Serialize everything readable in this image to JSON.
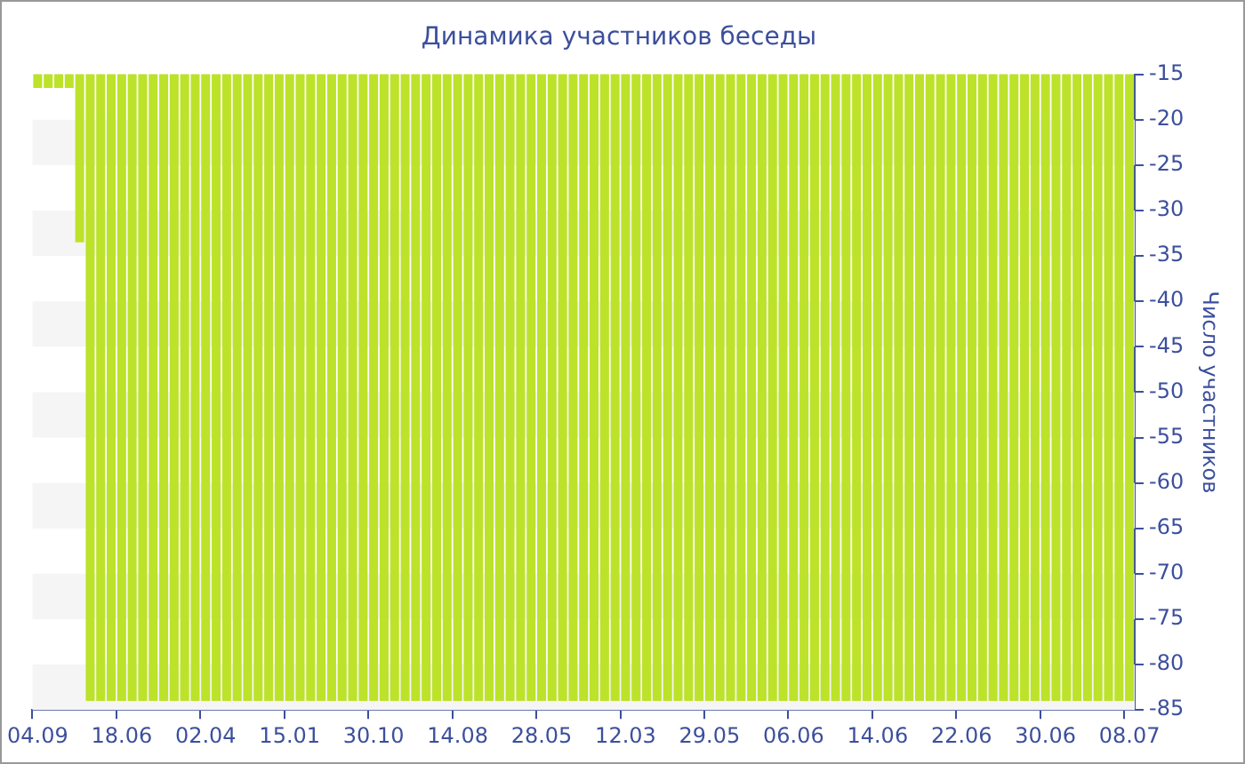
{
  "chart_data": {
    "type": "bar",
    "title": "Динамика участников беседы",
    "ylabel": "Число участников",
    "categories": [
      "04.09",
      null,
      null,
      null,
      null,
      null,
      null,
      null,
      "18.06",
      null,
      null,
      null,
      null,
      null,
      null,
      null,
      "02.04",
      null,
      null,
      null,
      null,
      null,
      null,
      null,
      "15.01",
      null,
      null,
      null,
      null,
      null,
      null,
      null,
      "30.10",
      null,
      null,
      null,
      null,
      null,
      null,
      null,
      "14.08",
      null,
      null,
      null,
      null,
      null,
      null,
      null,
      "28.05",
      null,
      null,
      null,
      null,
      null,
      null,
      null,
      "12.03",
      null,
      null,
      null,
      null,
      null,
      null,
      null,
      "29.05",
      null,
      null,
      null,
      null,
      null,
      null,
      null,
      "06.06",
      null,
      null,
      null,
      null,
      null,
      null,
      null,
      "14.06",
      null,
      null,
      null,
      null,
      null,
      null,
      null,
      "22.06",
      null,
      null,
      null,
      null,
      null,
      null,
      null,
      "30.06",
      null,
      null,
      null,
      null,
      null,
      null,
      null,
      "08.07"
    ],
    "values": [
      -16.5,
      -16.5,
      -16.5,
      -16.5,
      -33.5,
      -84,
      -84,
      -84,
      -84,
      -84,
      -84,
      -84,
      -84,
      -84,
      -84,
      -84,
      -84,
      -84,
      -84,
      -84,
      -84,
      -84,
      -84,
      -84,
      -84,
      -84,
      -84,
      -84,
      -84,
      -84,
      -84,
      -84,
      -84,
      -84,
      -84,
      -84,
      -84,
      -84,
      -84,
      -84,
      -84,
      -84,
      -84,
      -84,
      -84,
      -84,
      -84,
      -84,
      -84,
      -84,
      -84,
      -84,
      -84,
      -84,
      -84,
      -84,
      -84,
      -84,
      -84,
      -84,
      -84,
      -84,
      -84,
      -84,
      -84,
      -84,
      -84,
      -84,
      -84,
      -84,
      -84,
      -84,
      -84,
      -84,
      -84,
      -84,
      -84,
      -84,
      -84,
      -84,
      -84,
      -84,
      -84,
      -84,
      -84,
      -84,
      -84,
      -84,
      -84,
      -84,
      -84,
      -84,
      -84,
      -84,
      -84,
      -84,
      -84,
      -84,
      -84,
      -84,
      -84,
      -84,
      -84,
      -84,
      -84
    ],
    "color": "#bde22a",
    "ylim": [
      -85,
      -15
    ],
    "yticks": [
      -85,
      -80,
      -75,
      -70,
      -65,
      -60,
      -55,
      -50,
      -45,
      -40,
      -35,
      -30,
      -25,
      -20,
      -15
    ],
    "legend": false
  }
}
